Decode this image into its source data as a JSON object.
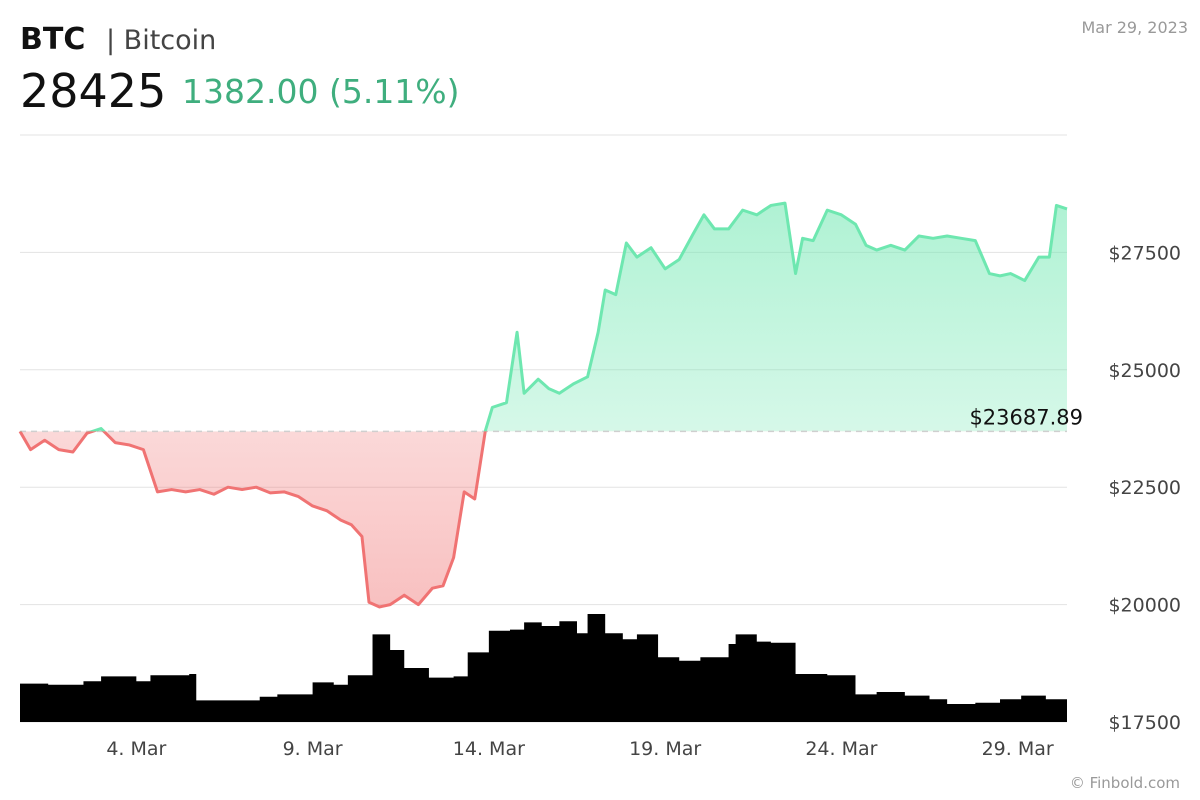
{
  "header": {
    "ticker": "BTC",
    "name": "| Bitcoin",
    "price": "28425",
    "change": "1382.00 (5.11%)",
    "date": "Mar 29, 2023",
    "credit": "© Finbold.com"
  },
  "colors": {
    "up": "#6ee7b0",
    "down": "#f07373",
    "volume": "#000000",
    "grid": "#e3e3e3"
  },
  "chart_data": {
    "type": "line",
    "title": "",
    "xlabel": "",
    "ylabel": "",
    "ylim": [
      17500,
      30000
    ],
    "yticks": [
      "$27500",
      "$25000",
      "$22500",
      "$20000",
      "$17500"
    ],
    "ytick_values": [
      27500,
      25000,
      22500,
      20000,
      17500
    ],
    "xticks": [
      "4. Mar",
      "9. Mar",
      "14. Mar",
      "19. Mar",
      "24. Mar",
      "29. Mar"
    ],
    "xtick_days": [
      4,
      9,
      14,
      19,
      24,
      29
    ],
    "xlim_days": [
      0.7,
      30.4
    ],
    "reference": {
      "value": 23687.89,
      "label": "$23687.89"
    },
    "grid": true,
    "legend": "none",
    "price_series": {
      "name": "",
      "x_days": [
        0.7,
        1.0,
        1.4,
        1.8,
        2.2,
        2.6,
        3.0,
        3.4,
        3.8,
        4.2,
        4.6,
        5.0,
        5.4,
        5.8,
        6.2,
        6.6,
        7.0,
        7.4,
        7.8,
        8.2,
        8.6,
        9.0,
        9.4,
        9.8,
        10.1,
        10.4,
        10.6,
        10.9,
        11.2,
        11.6,
        12.0,
        12.4,
        12.7,
        13.0,
        13.3,
        13.6,
        13.9,
        14.1,
        14.5,
        14.8,
        15.0,
        15.4,
        15.7,
        16.0,
        16.4,
        16.8,
        17.1,
        17.3,
        17.6,
        17.9,
        18.2,
        18.6,
        19.0,
        19.4,
        19.8,
        20.1,
        20.4,
        20.8,
        21.2,
        21.6,
        22.0,
        22.4,
        22.7,
        22.9,
        23.2,
        23.6,
        24.0,
        24.4,
        24.7,
        25.0,
        25.4,
        25.8,
        26.2,
        26.6,
        27.0,
        27.4,
        27.8,
        28.2,
        28.5,
        28.8,
        29.2,
        29.6,
        29.9,
        30.1,
        30.4
      ],
      "values": [
        23690,
        23300,
        23500,
        23300,
        23250,
        23650,
        23750,
        23450,
        23400,
        23300,
        22400,
        22450,
        22400,
        22450,
        22350,
        22500,
        22450,
        22500,
        22380,
        22400,
        22300,
        22100,
        22000,
        21800,
        21700,
        21450,
        20050,
        19950,
        20000,
        20200,
        20000,
        20350,
        20400,
        21000,
        22400,
        22250,
        23700,
        24200,
        24300,
        25800,
        24500,
        24800,
        24600,
        24500,
        24700,
        24850,
        25800,
        26700,
        26600,
        27700,
        27400,
        27600,
        27150,
        27350,
        27900,
        28300,
        28000,
        28000,
        28400,
        28300,
        28500,
        28550,
        27050,
        27800,
        27750,
        28400,
        28300,
        28100,
        27650,
        27550,
        27650,
        27550,
        27850,
        27800,
        27850,
        27800,
        27750,
        27050,
        27000,
        27050,
        26900,
        27400,
        27400,
        28500,
        28425
      ]
    },
    "volume_series": {
      "name": "",
      "x_days": [
        0.7,
        1.5,
        2.5,
        3.0,
        4.0,
        4.4,
        5.5,
        5.7,
        6.5,
        7.5,
        8.0,
        9.0,
        9.6,
        10.0,
        10.7,
        11.2,
        11.6,
        12.3,
        13.0,
        13.4,
        14.0,
        14.6,
        15.0,
        15.5,
        16.0,
        16.5,
        16.8,
        17.3,
        17.8,
        18.2,
        18.8,
        19.4,
        20.0,
        20.8,
        21.0,
        21.6,
        22.0,
        22.7,
        23.6,
        24.0,
        24.4,
        25.0,
        25.8,
        26.5,
        27.0,
        27.8,
        28.5,
        29.1,
        29.8,
        30.4
      ],
      "values": [
        3.2,
        3.1,
        3.4,
        3.8,
        3.4,
        3.9,
        4.0,
        1.8,
        1.8,
        2.1,
        2.3,
        3.3,
        3.1,
        3.9,
        7.3,
        6.0,
        4.5,
        3.7,
        3.8,
        5.8,
        7.6,
        7.7,
        8.3,
        8.0,
        8.4,
        7.4,
        9.0,
        7.4,
        6.9,
        7.3,
        5.4,
        5.1,
        5.4,
        6.5,
        7.3,
        6.7,
        6.6,
        4.0,
        3.9,
        3.9,
        2.3,
        2.5,
        2.2,
        1.9,
        1.5,
        1.6,
        1.9,
        2.2,
        1.9,
        2.6
      ]
    }
  }
}
